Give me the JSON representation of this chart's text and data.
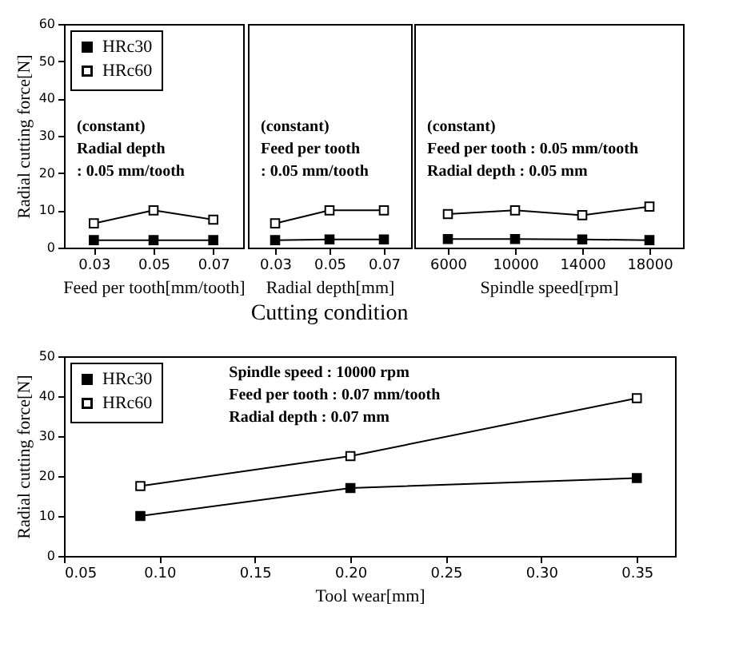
{
  "chart_data": [
    {
      "type": "line",
      "categories": [
        "0.03",
        "0.05",
        "0.07"
      ],
      "xlabel": "Feed per tooth[mm/tooth]",
      "ylabel": "Radial cutting force[N]",
      "ylim": [
        0,
        60
      ],
      "yticks": [
        0,
        10,
        20,
        30,
        40,
        50,
        60
      ],
      "marker": "square",
      "legend": "top left",
      "series": [
        {
          "name": "HRc30",
          "color": "#000000",
          "values": [
            2,
            2,
            2
          ]
        },
        {
          "name": "HRc60",
          "color": "#000000",
          "values": [
            6.5,
            10,
            7.5
          ]
        }
      ],
      "annotations": [
        "(constant)",
        "Radial depth",
        ": 0.05 mm/tooth"
      ]
    },
    {
      "type": "line",
      "categories": [
        "0.03",
        "0.05",
        "0.07"
      ],
      "xlabel": "Radial depth[mm]",
      "title": "Cutting condition",
      "ylim": [
        0,
        60
      ],
      "tick_labels": "x",
      "marker": "square",
      "series": [
        {
          "color": "#000000",
          "values": [
            2,
            2.2,
            2.2
          ]
        },
        {
          "color": "#000000",
          "values": [
            6.5,
            10,
            10
          ]
        }
      ],
      "annotations": [
        "(constant)",
        "Feed per tooth",
        ": 0.05 mm/tooth"
      ]
    },
    {
      "type": "line",
      "categories": [
        "6000",
        "10000",
        "14000",
        "18000"
      ],
      "xlabel": "Spindle speed[rpm]",
      "ylim": [
        0,
        60
      ],
      "tick_labels": "x",
      "marker": "square",
      "series": [
        {
          "color": "#000000",
          "values": [
            2.3,
            2.3,
            2.2,
            2
          ]
        },
        {
          "color": "#000000",
          "values": [
            9,
            10,
            8.7,
            11
          ]
        }
      ],
      "annotations": [
        "(constant)",
        "Feed per tooth : 0.05 mm/tooth",
        "Radial depth : 0.05 mm"
      ]
    },
    {
      "type": "line",
      "x": [
        0.09,
        0.2,
        0.35
      ],
      "xlabel": "Tool wear[mm]",
      "ylabel": "Radial cutting force[N]",
      "xlim": [
        0.05,
        0.37
      ],
      "xticks": [
        {
          "value": 0.05,
          "label": "0.05"
        },
        {
          "value": 0.1,
          "label": "0.10"
        },
        {
          "value": 0.15,
          "label": "0.15"
        },
        {
          "value": 0.2,
          "label": "0.20"
        },
        {
          "value": 0.25,
          "label": "0.25"
        },
        {
          "value": 0.3,
          "label": "0.30"
        },
        {
          "value": 0.35,
          "label": "0.35"
        }
      ],
      "ylim": [
        0,
        50
      ],
      "yticks": [
        0,
        10,
        20,
        30,
        40,
        50
      ],
      "marker": "square",
      "legend": "top left",
      "series": [
        {
          "name": "HRc30",
          "color": "#000000",
          "values": [
            10,
            17,
            19.5
          ]
        },
        {
          "name": "HRc60",
          "color": "#000000",
          "values": [
            17.5,
            25,
            39.5
          ]
        }
      ],
      "annotations": [
        "Spindle speed : 10000 rpm",
        "Feed per tooth : 0.07 mm/tooth",
        "Radial depth : 0.07 mm"
      ]
    }
  ]
}
